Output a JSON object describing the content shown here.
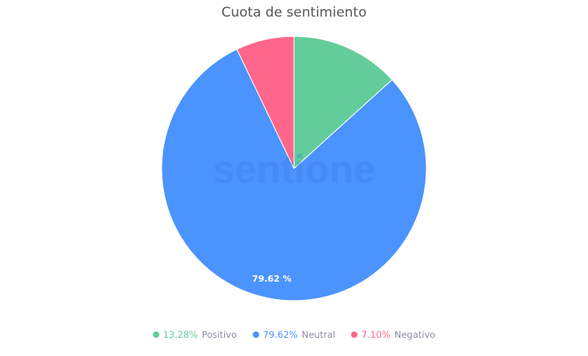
{
  "watermark": "sentione",
  "chart_data": {
    "type": "pie",
    "title": "Cuota de sentimiento",
    "start_angle": "top, clockwise",
    "slices": [
      {
        "name": "Positivo",
        "value": 13.28,
        "label": "13.28%",
        "color": "#62cd9a"
      },
      {
        "name": "Neutral",
        "value": 79.62,
        "label": "79.62%",
        "color": "#4b93ff"
      },
      {
        "name": "Negativo",
        "value": 7.1,
        "label": "7.10%",
        "color": "#ff668b"
      }
    ],
    "data_labels": [
      {
        "slice": "Neutral",
        "text": "79.62 %"
      }
    ],
    "legend": "bottom"
  }
}
